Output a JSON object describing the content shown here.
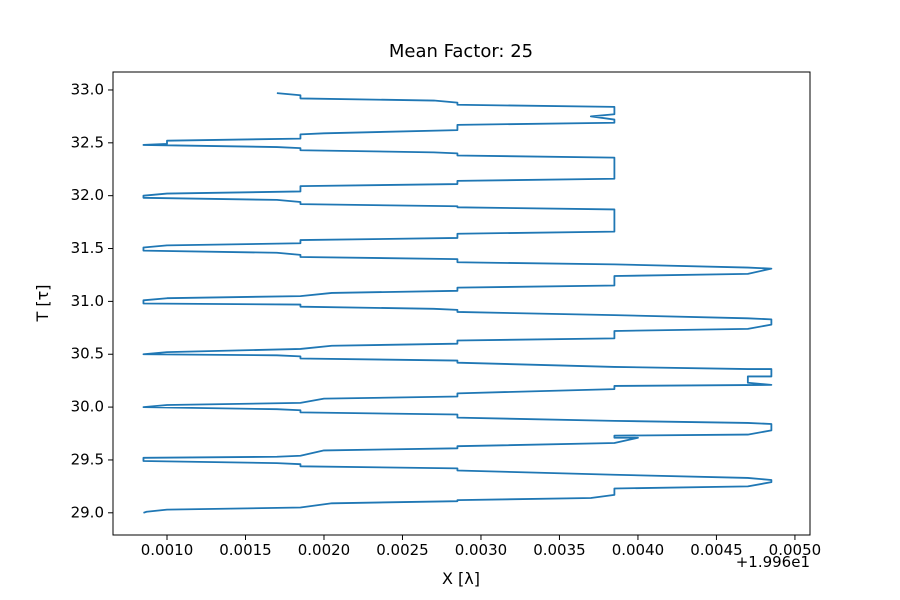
{
  "chart_data": {
    "type": "line",
    "title": "Mean Factor: 25",
    "xlabel": "X [λ]",
    "ylabel": "T [τ]",
    "x_offset_text": "+1.996e1",
    "color": "#1f77b4",
    "x": [
      0.00085,
      0.00087,
      0.001,
      0.00185,
      0.00205,
      0.00285,
      0.00285,
      0.0037,
      0.00385,
      0.00385,
      0.0047,
      0.00485,
      0.00485,
      0.0047,
      0.00385,
      0.00285,
      0.00285,
      0.00185,
      0.00185,
      0.0017,
      0.00085,
      0.00085,
      0.0017,
      0.00185,
      0.002,
      0.00285,
      0.00285,
      0.00385,
      0.004,
      0.00385,
      0.00385,
      0.0047,
      0.00485,
      0.00485,
      0.0047,
      0.00385,
      0.00285,
      0.00285,
      0.00185,
      0.00185,
      0.0017,
      0.00085,
      0.001,
      0.00185,
      0.002,
      0.00285,
      0.00285,
      0.00385,
      0.00385,
      0.00485,
      0.0047,
      0.0047,
      0.00485,
      0.00485,
      0.0047,
      0.00385,
      0.00285,
      0.00285,
      0.00185,
      0.00185,
      0.0017,
      0.00085,
      0.001,
      0.00185,
      0.00205,
      0.00285,
      0.00285,
      0.00385,
      0.00385,
      0.0047,
      0.00485,
      0.00485,
      0.0047,
      0.00385,
      0.00285,
      0.00285,
      0.0027,
      0.00185,
      0.00185,
      0.00085,
      0.00085,
      0.001,
      0.00185,
      0.00205,
      0.00285,
      0.00285,
      0.00385,
      0.00385,
      0.0047,
      0.00485,
      0.0047,
      0.00385,
      0.00285,
      0.00285,
      0.00185,
      0.00185,
      0.0017,
      0.00085,
      0.00085,
      0.001,
      0.00185,
      0.00185,
      0.00285,
      0.00285,
      0.00385,
      0.00385,
      0.00285,
      0.00285,
      0.00185,
      0.00185,
      0.0017,
      0.00085,
      0.00085,
      0.001,
      0.00185,
      0.00185,
      0.00285,
      0.00285,
      0.00385,
      0.00385,
      0.00285,
      0.00285,
      0.0027,
      0.00185,
      0.00185,
      0.0017,
      0.00085,
      0.001,
      0.001,
      0.00185,
      0.00185,
      0.002,
      0.00285,
      0.00285,
      0.00385,
      0.00385,
      0.0037,
      0.00385,
      0.00385,
      0.00285,
      0.00285,
      0.0027,
      0.00185,
      0.00185,
      0.0017
    ],
    "values": [
      29.0,
      29.01,
      29.03,
      29.05,
      29.09,
      29.11,
      29.12,
      29.14,
      29.17,
      29.23,
      29.25,
      29.29,
      29.31,
      29.33,
      29.36,
      29.4,
      29.42,
      29.44,
      29.46,
      29.47,
      29.49,
      29.52,
      29.53,
      29.54,
      29.59,
      29.61,
      29.63,
      29.66,
      29.71,
      29.71,
      29.73,
      29.74,
      29.78,
      29.84,
      29.85,
      29.87,
      29.9,
      29.93,
      29.95,
      29.97,
      29.98,
      30.0,
      30.02,
      30.04,
      30.08,
      30.1,
      30.13,
      30.17,
      30.2,
      30.21,
      30.23,
      30.29,
      30.29,
      30.36,
      30.36,
      30.38,
      30.42,
      30.44,
      30.46,
      30.48,
      30.49,
      30.5,
      30.52,
      30.55,
      30.58,
      30.6,
      30.63,
      30.65,
      30.72,
      30.74,
      30.78,
      30.83,
      30.84,
      30.87,
      30.9,
      30.92,
      30.93,
      30.95,
      30.97,
      30.98,
      31.01,
      31.03,
      31.05,
      31.08,
      31.1,
      31.13,
      31.15,
      31.24,
      31.26,
      31.31,
      31.32,
      31.35,
      31.37,
      31.4,
      31.42,
      31.44,
      31.46,
      31.48,
      31.51,
      31.53,
      31.55,
      31.58,
      31.6,
      31.64,
      31.66,
      31.87,
      31.89,
      31.9,
      31.92,
      31.94,
      31.96,
      31.98,
      32.0,
      32.02,
      32.04,
      32.09,
      32.11,
      32.14,
      32.16,
      32.36,
      32.38,
      32.4,
      32.41,
      32.43,
      32.45,
      32.46,
      32.48,
      32.49,
      32.52,
      32.54,
      32.58,
      32.59,
      32.62,
      32.67,
      32.69,
      32.72,
      32.75,
      32.77,
      32.84,
      32.86,
      32.88,
      32.9,
      32.92,
      32.95,
      32.97
    ],
    "xlim": [
      0.000656,
      0.005096
    ],
    "ylim": [
      28.79,
      33.17
    ],
    "xticks": [
      {
        "value": 0.001,
        "label": "0.0010"
      },
      0.0015,
      {
        "value": 0.002,
        "label": "0.0020"
      },
      0.0025,
      {
        "value": 0.003,
        "label": "0.0030"
      },
      0.0035,
      {
        "value": 0.004,
        "label": "0.0040"
      },
      0.0045,
      {
        "value": 0.005,
        "label": "0.0050"
      }
    ],
    "yticks": [
      {
        "value": 29,
        "label": "29.0"
      },
      29.5,
      {
        "value": 30,
        "label": "30.0"
      },
      30.5,
      {
        "value": 31,
        "label": "31.0"
      },
      31.5,
      {
        "value": 32,
        "label": "32.0"
      },
      32.5,
      {
        "value": 33,
        "label": "33.0"
      }
    ]
  }
}
